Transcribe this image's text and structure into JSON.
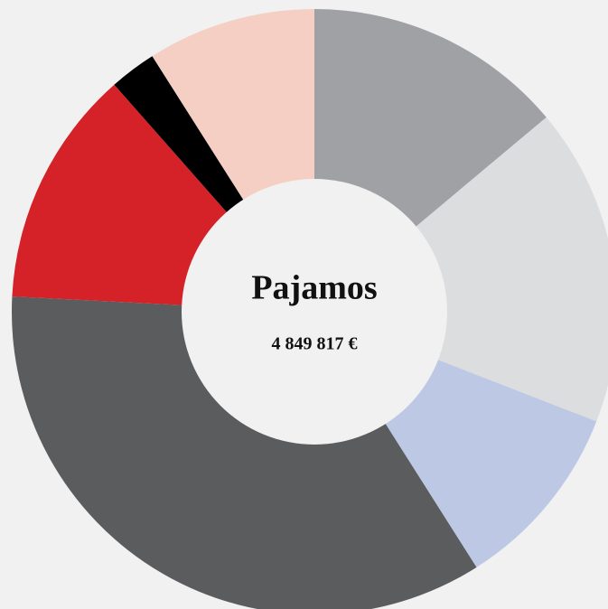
{
  "chart_data": {
    "type": "donut",
    "title": "Pajamos",
    "subtitle": "4 849 817 €",
    "values": [
      13.9,
      17.0,
      10.1,
      34.8,
      12.7,
      2.5,
      9.0
    ],
    "colors": [
      "#a0a1a5",
      "#dcdddf",
      "#bdc9e4",
      "#5b5c5e",
      "#d52228",
      "#000000",
      "#f5cfc4"
    ]
  }
}
